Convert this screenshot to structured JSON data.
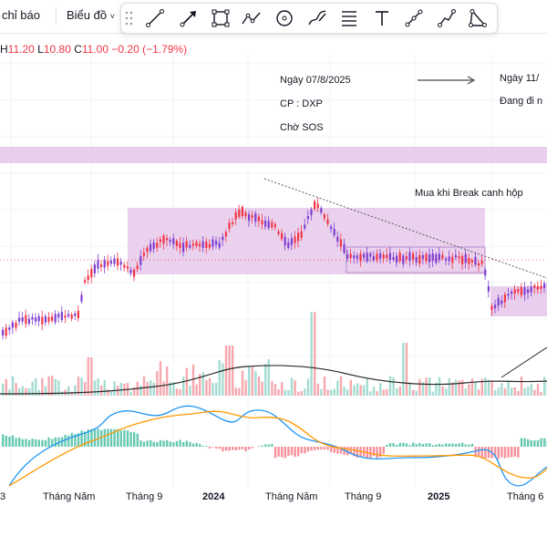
{
  "toolbar": {
    "indicators_label": "chỉ báo",
    "chart_menu_label": "Biểu đồ",
    "tools": [
      "trend-line-icon",
      "arrow-icon",
      "rectangle-icon",
      "zigzag-icon",
      "circle-icon",
      "brush-icon",
      "fib-lines-icon",
      "text-icon",
      "parallel-channel-icon",
      "path-icon",
      "triangle-icon"
    ]
  },
  "ohlc": {
    "h_label": "H",
    "h_value": "11.20",
    "l_label": "L",
    "l_value": "10.80",
    "c_label": "C",
    "c_value": "11.00",
    "change": "−0.20 (−1.79%)"
  },
  "annotations": {
    "date_left": "Ngày 07/8/2025",
    "ticker": "CP : DXP",
    "waiting": "Chờ SOS",
    "date_right": "Ngày 11/",
    "status_right": "Đang đi n",
    "buy_note": "Mua khi Break canh hộp"
  },
  "x_axis": {
    "labels": [
      "3",
      "Tháng Năm",
      "Tháng 9",
      "2024",
      "Tháng Năm",
      "Tháng 9",
      "2025",
      "Tháng 6"
    ]
  },
  "colors": {
    "up": "#26a69a",
    "candle_up": "#7e3fd1",
    "down": "#f23645",
    "box": "#e1bee7",
    "macd": "#2196f3",
    "signal": "#ff9800"
  }
}
